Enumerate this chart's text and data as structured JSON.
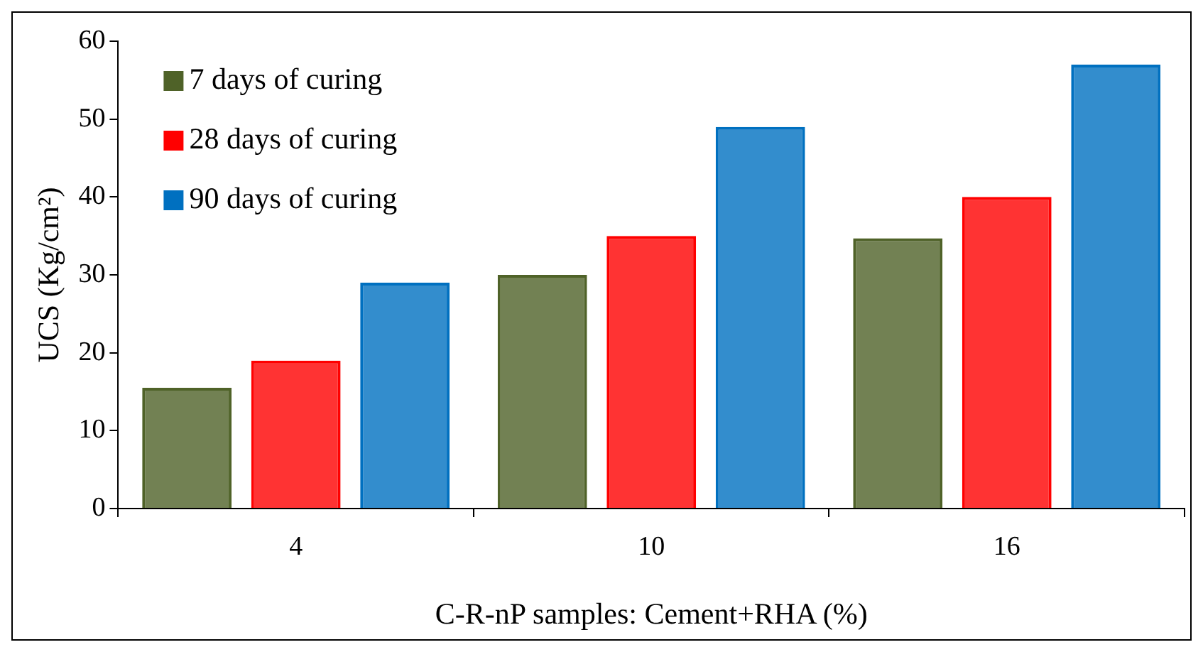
{
  "chart_data": {
    "type": "bar",
    "xlabel": "C-R-nP samples: Cement+RHA (%)",
    "ylabel": "UCS (Kg/cm²)",
    "categories": [
      "4",
      "10",
      "16"
    ],
    "series": [
      {
        "name": "7 days of curing",
        "color": "#4f6228",
        "values": [
          15.5,
          30,
          34.7
        ]
      },
      {
        "name": "28 days of curing",
        "color": "#ff0000",
        "values": [
          19,
          35,
          40
        ]
      },
      {
        "name": "90 days of curing",
        "color": "#0070c0",
        "values": [
          29,
          49,
          57
        ]
      }
    ],
    "ylim": [
      0,
      60
    ],
    "yticks": [
      0,
      10,
      20,
      30,
      40,
      50,
      60
    ],
    "grid": false,
    "legend": "top left"
  }
}
